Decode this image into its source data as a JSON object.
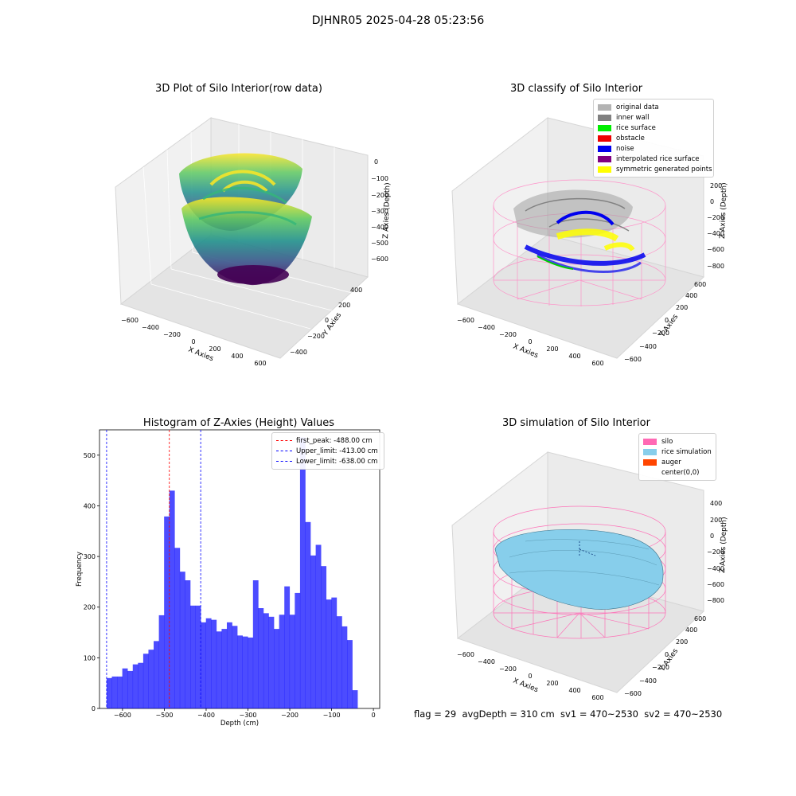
{
  "suptitle": "DJHNR05 2025-04-28 05:23:56",
  "status_text": "flag = 29  avgDepth = 310 cm  sv1 = 470~2530  sv2 = 470~2530",
  "panels": {
    "raw": {
      "title": "3D Plot of Silo Interior(row data)",
      "xlabel": "X Axies",
      "ylabel": "Y Axies",
      "zlabel": "Z Axies (Depth)",
      "xticks": [
        "−600",
        "−400",
        "−200",
        "0",
        "200",
        "400",
        "600"
      ],
      "yticks": [
        "−400",
        "−200",
        "0",
        "200",
        "400"
      ],
      "zticks": [
        "0",
        "−100",
        "−200",
        "−300",
        "−400",
        "−500",
        "−600"
      ]
    },
    "classify": {
      "title": "3D classify of Silo Interior",
      "xlabel": "X Axies",
      "ylabel": "Y Axies",
      "zlabel": "Z Axies (Depth)",
      "xticks": [
        "−600",
        "−400",
        "−200",
        "0",
        "200",
        "400",
        "600"
      ],
      "yticks": [
        "−600",
        "−400",
        "−200",
        "0",
        "200",
        "400",
        "600"
      ],
      "zticks": [
        "200",
        "0",
        "−200",
        "−400",
        "−600",
        "−800"
      ],
      "legend": [
        {
          "label": "original data",
          "color": "#b3b3b3"
        },
        {
          "label": "inner wall",
          "color": "#808080"
        },
        {
          "label": "rice surface",
          "color": "#00ee00"
        },
        {
          "label": "obstacle",
          "color": "#ee0000"
        },
        {
          "label": "noise",
          "color": "#0000ee"
        },
        {
          "label": "interpolated rice surface",
          "color": "#800080"
        },
        {
          "label": "symmetric generated points",
          "color": "#ffff00"
        }
      ]
    },
    "simulation": {
      "title": "3D simulation of Silo Interior",
      "xlabel": "X Axies",
      "ylabel": "Y Axies",
      "zlabel": "Z Axies (Depth)",
      "xticks": [
        "−600",
        "−400",
        "−200",
        "0",
        "200",
        "400",
        "600"
      ],
      "yticks": [
        "−600",
        "−400",
        "−200",
        "0",
        "200",
        "400",
        "600"
      ],
      "zticks": [
        "400",
        "200",
        "0",
        "−200",
        "−400",
        "−600",
        "−800"
      ],
      "legend": [
        {
          "label": "silo",
          "color": "#ff69b4"
        },
        {
          "label": "rice simulation",
          "color": "#87ceeb"
        },
        {
          "label": "auger",
          "color": "#ff4500"
        },
        {
          "label": "center(0,0)",
          "color": "transparent"
        }
      ]
    }
  },
  "chart_data": [
    {
      "type": "bar",
      "title": "Histogram of Z-Axies (Height) Values",
      "xlabel": "Depth (cm)",
      "ylabel": "Frequency",
      "xlim": [
        -655,
        15
      ],
      "ylim": [
        0,
        550
      ],
      "xticks": [
        -600,
        -500,
        -400,
        -300,
        -200,
        -100,
        0
      ],
      "xtick_labels": [
        "−600",
        "−500",
        "−400",
        "−300",
        "−200",
        "−100",
        "0"
      ],
      "yticks": [
        0,
        100,
        200,
        300,
        400,
        500
      ],
      "bin_width": 12.5,
      "bin_start": -638,
      "values": [
        60,
        63,
        63,
        79,
        74,
        87,
        90,
        108,
        116,
        133,
        184,
        379,
        430,
        317,
        270,
        253,
        203,
        203,
        170,
        178,
        175,
        152,
        157,
        170,
        163,
        144,
        142,
        140,
        253,
        198,
        188,
        181,
        157,
        185,
        241,
        185,
        228,
        535,
        368,
        302,
        323,
        281,
        215,
        219,
        182,
        162,
        135,
        36
      ],
      "color": "#0000ff",
      "vlines": [
        {
          "x": -488,
          "color": "#ff0000",
          "label": "first_peak: -488.00 cm"
        },
        {
          "x": -413,
          "color": "#0000ff",
          "label": "Upper_limit: -413.00 cm"
        },
        {
          "x": -638,
          "color": "#0000ff",
          "label": "Lower_limit: -638.00 cm"
        }
      ]
    }
  ]
}
